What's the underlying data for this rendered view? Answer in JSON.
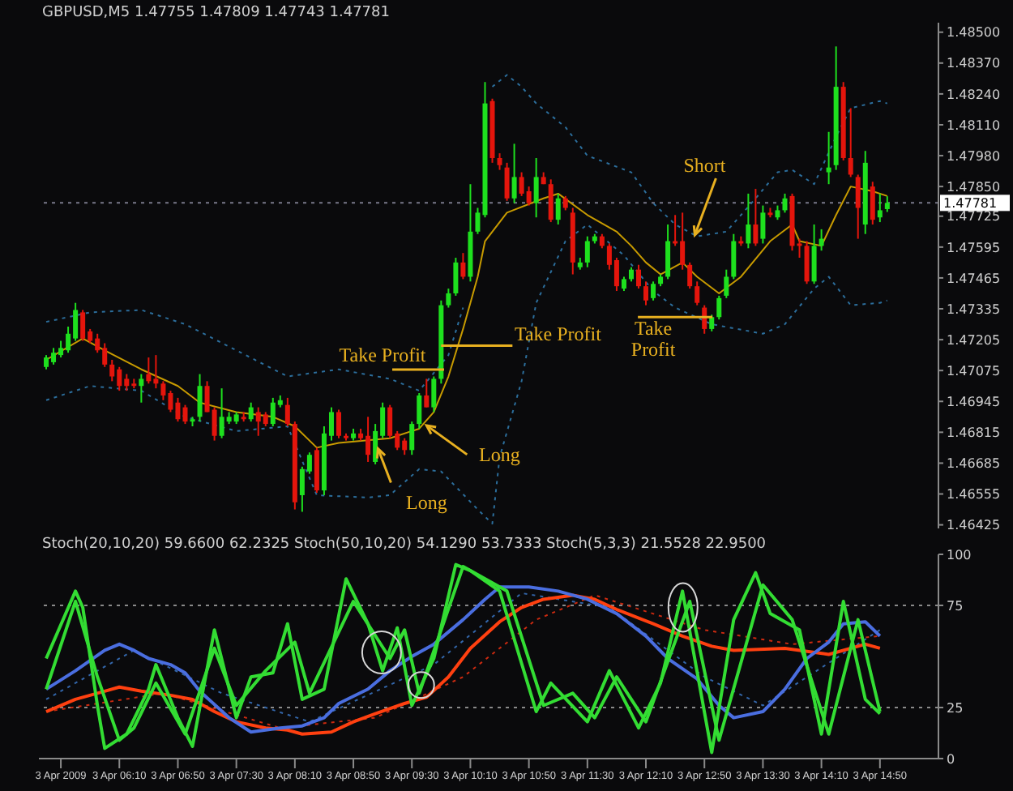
{
  "chart_data": [
    {
      "type": "candlestick",
      "title": "GBPUSD,M5 1.47755 1.47809 1.47743 1.47781",
      "x": [
        "2009-04-03T05:20",
        "2009-04-03T05:25",
        "2009-04-03T05:30",
        "2009-04-03T05:35",
        "2009-04-03T05:40",
        "2009-04-03T05:45",
        "2009-04-03T05:50",
        "2009-04-03T05:55",
        "2009-04-03T06:00",
        "2009-04-03T06:05",
        "2009-04-03T06:10",
        "2009-04-03T06:15",
        "2009-04-03T06:20",
        "2009-04-03T06:25",
        "2009-04-03T06:30",
        "2009-04-03T06:35",
        "2009-04-03T06:40",
        "2009-04-03T06:45",
        "2009-04-03T06:50",
        "2009-04-03T06:55",
        "2009-04-03T07:00",
        "2009-04-03T07:05",
        "2009-04-03T07:10",
        "2009-04-03T07:15",
        "2009-04-03T07:20",
        "2009-04-03T07:25",
        "2009-04-03T07:30",
        "2009-04-03T07:35",
        "2009-04-03T07:40",
        "2009-04-03T07:45",
        "2009-04-03T07:50",
        "2009-04-03T07:55",
        "2009-04-03T08:00",
        "2009-04-03T08:05",
        "2009-04-03T08:10",
        "2009-04-03T08:15",
        "2009-04-03T08:20",
        "2009-04-03T08:25",
        "2009-04-03T08:30",
        "2009-04-03T08:35",
        "2009-04-03T08:40",
        "2009-04-03T08:45",
        "2009-04-03T08:50",
        "2009-04-03T08:55",
        "2009-04-03T09:00",
        "2009-04-03T09:05",
        "2009-04-03T09:10",
        "2009-04-03T09:15",
        "2009-04-03T09:20",
        "2009-04-03T09:25",
        "2009-04-03T09:30",
        "2009-04-03T09:35",
        "2009-04-03T09:40",
        "2009-04-03T09:45",
        "2009-04-03T09:50",
        "2009-04-03T09:55",
        "2009-04-03T10:00",
        "2009-04-03T10:05",
        "2009-04-03T10:10",
        "2009-04-03T10:15",
        "2009-04-03T10:20",
        "2009-04-03T10:25",
        "2009-04-03T10:30",
        "2009-04-03T10:35",
        "2009-04-03T10:40",
        "2009-04-03T10:45",
        "2009-04-03T10:50",
        "2009-04-03T10:55",
        "2009-04-03T11:00",
        "2009-04-03T11:05",
        "2009-04-03T11:10",
        "2009-04-03T11:15",
        "2009-04-03T11:20",
        "2009-04-03T11:25",
        "2009-04-03T11:30",
        "2009-04-03T11:35",
        "2009-04-03T11:40",
        "2009-04-03T11:45",
        "2009-04-03T11:50",
        "2009-04-03T11:55",
        "2009-04-03T12:00",
        "2009-04-03T12:05",
        "2009-04-03T12:10",
        "2009-04-03T12:15",
        "2009-04-03T12:20",
        "2009-04-03T12:25",
        "2009-04-03T12:30",
        "2009-04-03T12:35",
        "2009-04-03T12:40",
        "2009-04-03T12:45",
        "2009-04-03T12:50",
        "2009-04-03T12:55",
        "2009-04-03T13:00",
        "2009-04-03T13:05",
        "2009-04-03T13:10",
        "2009-04-03T13:15",
        "2009-04-03T13:20",
        "2009-04-03T13:25",
        "2009-04-03T13:30",
        "2009-04-03T13:35",
        "2009-04-03T13:40",
        "2009-04-03T13:45",
        "2009-04-03T13:50",
        "2009-04-03T13:55",
        "2009-04-03T14:00",
        "2009-04-03T14:05",
        "2009-04-03T14:10",
        "2009-04-03T14:15",
        "2009-04-03T14:20",
        "2009-04-03T14:25",
        "2009-04-03T14:30",
        "2009-04-03T14:35",
        "2009-04-03T14:40",
        "2009-04-03T14:45",
        "2009-04-03T14:50",
        "2009-04-03T14:55"
      ],
      "series": [
        {
          "type": "candlestick",
          "ohlc": [
            [
              1.4709,
              1.4714,
              1.4708,
              1.4713
            ],
            [
              1.4711,
              1.4717,
              1.471,
              1.4715
            ],
            [
              1.4714,
              1.472,
              1.4713,
              1.4717
            ],
            [
              1.4716,
              1.4726,
              1.4715,
              1.4723
            ],
            [
              1.4721,
              1.4736,
              1.472,
              1.4733
            ],
            [
              1.4732,
              1.4733,
              1.472,
              1.4721
            ],
            [
              1.4724,
              1.4725,
              1.4719,
              1.472
            ],
            [
              1.4721,
              1.4723,
              1.4715,
              1.4716
            ],
            [
              1.4717,
              1.4719,
              1.4709,
              1.471
            ],
            [
              1.471,
              1.4712,
              1.4703,
              1.4705
            ],
            [
              1.4708,
              1.4709,
              1.4699,
              1.4701
            ],
            [
              1.4704,
              1.4706,
              1.4699,
              1.4701
            ],
            [
              1.4702,
              1.4704,
              1.47,
              1.4701
            ],
            [
              1.4701,
              1.4706,
              1.4694,
              1.4704
            ],
            [
              1.4706,
              1.4713,
              1.4702,
              1.4703
            ],
            [
              1.4704,
              1.4714,
              1.47,
              1.4702
            ],
            [
              1.4702,
              1.4703,
              1.4695,
              1.4697
            ],
            [
              1.4698,
              1.4699,
              1.469,
              1.4691
            ],
            [
              1.4694,
              1.4696,
              1.4686,
              1.4687
            ],
            [
              1.4692,
              1.4693,
              1.4685,
              1.4686
            ],
            [
              1.4686,
              1.4688,
              1.4684,
              1.4687
            ],
            [
              1.4688,
              1.4706,
              1.4686,
              1.4701
            ],
            [
              1.4701,
              1.4703,
              1.469,
              1.469
            ],
            [
              1.4691,
              1.4692,
              1.4678,
              1.468
            ],
            [
              1.468,
              1.47,
              1.4679,
              1.4688
            ],
            [
              1.4686,
              1.469,
              1.4685,
              1.4688
            ],
            [
              1.4686,
              1.469,
              1.4685,
              1.4689
            ],
            [
              1.4688,
              1.469,
              1.4686,
              1.4687
            ],
            [
              1.4687,
              1.4694,
              1.4686,
              1.4692
            ],
            [
              1.469,
              1.4692,
              1.468,
              1.4686
            ],
            [
              1.4689,
              1.469,
              1.4684,
              1.4685
            ],
            [
              1.4685,
              1.4696,
              1.4684,
              1.4694
            ],
            [
              1.4693,
              1.4697,
              1.4692,
              1.4695
            ],
            [
              1.4693,
              1.4696,
              1.4684,
              1.4685
            ],
            [
              1.4685,
              1.4686,
              1.4649,
              1.4652
            ],
            [
              1.4655,
              1.4667,
              1.4648,
              1.4666
            ],
            [
              1.4665,
              1.4673,
              1.4664,
              1.4672
            ],
            [
              1.4674,
              1.4675,
              1.4656,
              1.4657
            ],
            [
              1.4657,
              1.4684,
              1.4655,
              1.4681
            ],
            [
              1.468,
              1.4692,
              1.4678,
              1.469
            ],
            [
              1.469,
              1.4691,
              1.4679,
              1.468
            ],
            [
              1.468,
              1.4681,
              1.4678,
              1.4679
            ],
            [
              1.4679,
              1.4683,
              1.4678,
              1.4681
            ],
            [
              1.4681,
              1.4683,
              1.4678,
              1.4679
            ],
            [
              1.468,
              1.4688,
              1.4669,
              1.4672
            ],
            [
              1.4669,
              1.4685,
              1.4668,
              1.4682
            ],
            [
              1.468,
              1.4694,
              1.4679,
              1.4692
            ],
            [
              1.4692,
              1.4693,
              1.4679,
              1.468
            ],
            [
              1.4681,
              1.4682,
              1.4674,
              1.4675
            ],
            [
              1.4678,
              1.4679,
              1.4672,
              1.4674
            ],
            [
              1.4674,
              1.4686,
              1.4672,
              1.4685
            ],
            [
              1.4685,
              1.4698,
              1.4683,
              1.4697
            ],
            [
              1.4697,
              1.4704,
              1.4692,
              1.4692
            ],
            [
              1.4692,
              1.4705,
              1.469,
              1.4704
            ],
            [
              1.4704,
              1.4737,
              1.4702,
              1.4735
            ],
            [
              1.4735,
              1.4742,
              1.4734,
              1.474
            ],
            [
              1.474,
              1.4755,
              1.4739,
              1.4753
            ],
            [
              1.4753,
              1.4757,
              1.4746,
              1.4747
            ],
            [
              1.4747,
              1.4786,
              1.4745,
              1.4766
            ],
            [
              1.4766,
              1.4776,
              1.4765,
              1.4774
            ],
            [
              1.4773,
              1.4829,
              1.4772,
              1.482
            ],
            [
              1.4821,
              1.4822,
              1.4795,
              1.4797
            ],
            [
              1.4797,
              1.4799,
              1.4792,
              1.4794
            ],
            [
              1.4793,
              1.4795,
              1.4779,
              1.478
            ],
            [
              1.478,
              1.4803,
              1.4778,
              1.4789
            ],
            [
              1.4789,
              1.4791,
              1.4781,
              1.4782
            ],
            [
              1.4783,
              1.4785,
              1.4777,
              1.4778
            ],
            [
              1.4778,
              1.4797,
              1.4772,
              1.4789
            ],
            [
              1.4789,
              1.4791,
              1.4786,
              1.4786
            ],
            [
              1.4786,
              1.4788,
              1.477,
              1.4771
            ],
            [
              1.4771,
              1.4782,
              1.4769,
              1.478
            ],
            [
              1.478,
              1.4781,
              1.4775,
              1.4776
            ],
            [
              1.4774,
              1.4776,
              1.4748,
              1.4753
            ],
            [
              1.4751,
              1.4755,
              1.475,
              1.4753
            ],
            [
              1.4753,
              1.4764,
              1.4751,
              1.4762
            ],
            [
              1.4762,
              1.4765,
              1.4761,
              1.4764
            ],
            [
              1.4764,
              1.4765,
              1.4759,
              1.476
            ],
            [
              1.476,
              1.4761,
              1.475,
              1.4752
            ],
            [
              1.4754,
              1.4755,
              1.4741,
              1.4743
            ],
            [
              1.4742,
              1.4747,
              1.4741,
              1.4746
            ],
            [
              1.4746,
              1.4751,
              1.4745,
              1.475
            ],
            [
              1.475,
              1.4752,
              1.4742,
              1.4743
            ],
            [
              1.4743,
              1.4745,
              1.4735,
              1.4737
            ],
            [
              1.4738,
              1.4745,
              1.4737,
              1.4744
            ],
            [
              1.4744,
              1.4748,
              1.4743,
              1.4747
            ],
            [
              1.4747,
              1.4769,
              1.4746,
              1.4762
            ],
            [
              1.4762,
              1.4773,
              1.476,
              1.4761
            ],
            [
              1.4762,
              1.4774,
              1.475,
              1.4752
            ],
            [
              1.4752,
              1.4753,
              1.4742,
              1.4743
            ],
            [
              1.4743,
              1.4745,
              1.4735,
              1.4736
            ],
            [
              1.4734,
              1.4735,
              1.4723,
              1.4725
            ],
            [
              1.4725,
              1.4731,
              1.4724,
              1.473
            ],
            [
              1.473,
              1.4739,
              1.4729,
              1.4738
            ],
            [
              1.4739,
              1.475,
              1.4738,
              1.4747
            ],
            [
              1.4747,
              1.4765,
              1.4746,
              1.4762
            ],
            [
              1.4762,
              1.4764,
              1.476,
              1.4761
            ],
            [
              1.4761,
              1.4782,
              1.4759,
              1.4769
            ],
            [
              1.4769,
              1.4784,
              1.476,
              1.4761
            ],
            [
              1.4763,
              1.4777,
              1.4761,
              1.4774
            ],
            [
              1.4774,
              1.4776,
              1.4772,
              1.4773
            ],
            [
              1.4772,
              1.4777,
              1.4771,
              1.4775
            ],
            [
              1.4775,
              1.4782,
              1.4774,
              1.478
            ],
            [
              1.4781,
              1.4782,
              1.4758,
              1.476
            ],
            [
              1.4761,
              1.4763,
              1.4755,
              1.476
            ],
            [
              1.476,
              1.4762,
              1.4744,
              1.4745
            ],
            [
              1.4745,
              1.4769,
              1.4744,
              1.476
            ],
            [
              1.476,
              1.4767,
              1.4758,
              1.4763
            ],
            [
              1.4791,
              1.4808,
              1.4786,
              1.4793
            ],
            [
              1.4794,
              1.4844,
              1.4792,
              1.4827
            ],
            [
              1.4827,
              1.4829,
              1.4796,
              1.4797
            ],
            [
              1.4797,
              1.4818,
              1.4789,
              1.479
            ],
            [
              1.4789,
              1.479,
              1.4763,
              1.4776
            ],
            [
              1.4769,
              1.48,
              1.4765,
              1.4795
            ],
            [
              1.4785,
              1.4787,
              1.4769,
              1.4771
            ],
            [
              1.4772,
              1.4782,
              1.477,
              1.4775
            ],
            [
              1.47755,
              1.47809,
              1.47743,
              1.47781
            ]
          ],
          "colors": [
            "#1ee01e",
            "#1ee01e",
            "#1ee01e",
            "#1ee01e",
            "#1ee01e",
            "#e4150c",
            "#e4150c",
            "#e4150c",
            "#e4150c",
            "#e4150c",
            "#e4150c",
            "#e4150c",
            "#e4150c",
            "#1ee01e",
            "#e4150c",
            "#e4150c",
            "#e4150c",
            "#e4150c",
            "#e4150c",
            "#e4150c",
            "#1ee01e",
            "#1ee01e",
            "#e4150c",
            "#e4150c",
            "#1ee01e",
            "#1ee01e",
            "#1ee01e",
            "#e4150c",
            "#1ee01e",
            "#e4150c",
            "#e4150c",
            "#1ee01e",
            "#1ee01e",
            "#e4150c",
            "#e4150c",
            "#1ee01e",
            "#1ee01e",
            "#e4150c",
            "#1ee01e",
            "#1ee01e",
            "#e4150c",
            "#e4150c",
            "#1ee01e",
            "#e4150c",
            "#e4150c",
            "#1ee01e",
            "#1ee01e",
            "#e4150c",
            "#e4150c",
            "#e4150c",
            "#1ee01e",
            "#1ee01e",
            "#e4150c",
            "#1ee01e",
            "#1ee01e",
            "#1ee01e",
            "#1ee01e",
            "#e4150c",
            "#1ee01e",
            "#1ee01e",
            "#1ee01e",
            "#e4150c",
            "#e4150c",
            "#e4150c",
            "#1ee01e",
            "#e4150c",
            "#e4150c",
            "#1ee01e",
            "#e4150c",
            "#e4150c",
            "#1ee01e",
            "#e4150c",
            "#e4150c",
            "#1ee01e",
            "#1ee01e",
            "#1ee01e",
            "#e4150c",
            "#e4150c",
            "#e4150c",
            "#1ee01e",
            "#1ee01e",
            "#e4150c",
            "#e4150c",
            "#1ee01e",
            "#1ee01e",
            "#1ee01e",
            "#e4150c",
            "#e4150c",
            "#e4150c",
            "#e4150c",
            "#e4150c",
            "#1ee01e",
            "#1ee01e",
            "#1ee01e",
            "#1ee01e",
            "#e4150c",
            "#1ee01e",
            "#e4150c",
            "#1ee01e",
            "#e4150c",
            "#1ee01e",
            "#1ee01e",
            "#e4150c",
            "#e4150c",
            "#e4150c",
            "#1ee01e",
            "#1ee01e",
            "#1ee01e",
            "#1ee01e",
            "#e4150c",
            "#e4150c",
            "#e4150c",
            "#1ee01e",
            "#e4150c",
            "#1ee01e",
            "#1ee01e"
          ]
        },
        {
          "type": "line",
          "color": "#c89b00",
          "x": [
            "2009-04-03T05:20",
            "2009-04-03T05:45",
            "2009-04-03T06:00",
            "2009-04-03T06:25",
            "2009-04-03T06:50",
            "2009-04-03T07:05",
            "2009-04-03T07:30",
            "2009-04-03T07:55",
            "2009-04-03T08:10",
            "2009-04-03T08:25",
            "2009-04-03T08:40",
            "2009-04-03T09:15",
            "2009-04-03T09:35",
            "2009-04-03T09:45",
            "2009-04-03T09:55",
            "2009-04-03T10:05",
            "2009-04-03T10:15",
            "2009-04-03T10:20",
            "2009-04-03T10:35",
            "2009-04-03T11:00",
            "2009-04-03T11:10",
            "2009-04-03T11:30",
            "2009-04-03T11:50",
            "2009-04-03T12:00",
            "2009-04-03T12:10",
            "2009-04-03T12:20",
            "2009-04-03T12:35",
            "2009-04-03T12:45",
            "2009-04-03T13:00",
            "2009-04-03T13:15",
            "2009-04-03T13:35",
            "2009-04-03T13:50",
            "2009-04-03T13:55",
            "2009-04-03T14:10",
            "2009-04-03T14:20",
            "2009-04-03T14:30",
            "2009-04-03T14:45",
            "2009-04-03T14:55"
          ],
          "values": [
            1.4712,
            1.4721,
            1.4716,
            1.4708,
            1.4701,
            1.4694,
            1.469,
            1.4688,
            1.4684,
            1.4675,
            1.4677,
            1.4679,
            1.4683,
            1.469,
            1.4705,
            1.4725,
            1.4747,
            1.4762,
            1.4774,
            1.478,
            1.4782,
            1.4773,
            1.4766,
            1.476,
            1.4753,
            1.4748,
            1.4753,
            1.4747,
            1.474,
            1.4747,
            1.4762,
            1.4769,
            1.4762,
            1.476,
            1.4773,
            1.4785,
            1.4783,
            1.4781
          ]
        },
        {
          "type": "line",
          "color": "#2c6e9c",
          "line_style": "dotted",
          "x": [
            "2009-04-03T05:20",
            "2009-04-03T05:50",
            "2009-04-03T06:25",
            "2009-04-03T06:55",
            "2009-04-03T07:30",
            "2009-04-03T08:05",
            "2009-04-03T08:40",
            "2009-04-03T09:15",
            "2009-04-03T09:35",
            "2009-04-03T09:55",
            "2009-04-03T10:05",
            "2009-04-03T10:10",
            "2009-04-03T10:15",
            "2009-04-03T10:20",
            "2009-04-03T10:25",
            "2009-04-03T10:35",
            "2009-04-03T10:45",
            "2009-04-03T10:55",
            "2009-04-03T11:15",
            "2009-04-03T11:30",
            "2009-04-03T12:00",
            "2009-04-03T12:15",
            "2009-04-03T12:30",
            "2009-04-03T12:45",
            "2009-04-03T13:05",
            "2009-04-03T13:25",
            "2009-04-03T13:40",
            "2009-04-03T13:50",
            "2009-04-03T14:05",
            "2009-04-03T14:20",
            "2009-04-03T14:30",
            "2009-04-03T14:50",
            "2009-04-03T14:55"
          ],
          "values": [
            1.4728,
            1.4732,
            1.4733,
            1.4727,
            1.4716,
            1.4705,
            1.4708,
            1.4704,
            1.4699,
            1.4714,
            1.4734,
            null,
            null,
            null,
            1.4827,
            1.4832,
            1.4827,
            1.482,
            1.481,
            1.4798,
            1.4791,
            1.4778,
            1.4769,
            1.4764,
            1.4766,
            1.478,
            1.4791,
            1.4792,
            1.4786,
            1.4806,
            1.4818,
            1.4821,
            1.482
          ]
        },
        {
          "type": "line",
          "color": "#2c6e9c",
          "line_style": "dotted",
          "x": [
            "2009-04-03T05:20",
            "2009-04-03T05:50",
            "2009-04-03T06:25",
            "2009-04-03T06:55",
            "2009-04-03T07:30",
            "2009-04-03T08:05",
            "2009-04-03T08:25",
            "2009-04-03T09:00",
            "2009-04-03T09:15",
            "2009-04-03T09:35",
            "2009-04-03T09:50",
            "2009-04-03T10:15",
            "2009-04-03T10:25",
            "2009-04-03T10:30",
            "2009-04-03T10:45",
            "2009-04-03T10:55",
            "2009-04-03T11:15",
            "2009-04-03T11:30",
            "2009-04-03T11:55",
            "2009-04-03T12:15",
            "2009-04-03T12:30",
            "2009-04-03T12:55",
            "2009-04-03T13:30",
            "2009-04-03T13:45",
            "2009-04-03T14:05",
            "2009-04-03T14:15",
            "2009-04-03T14:30",
            "2009-04-03T14:50",
            "2009-04-03T14:55"
          ],
          "values": [
            1.4695,
            1.4701,
            1.4699,
            1.4688,
            1.4682,
            1.4684,
            1.4655,
            1.4654,
            1.4655,
            1.4666,
            1.4665,
            1.4649,
            1.4643,
            1.4671,
            1.4703,
            1.4736,
            1.4762,
            1.4769,
            1.4756,
            1.4741,
            1.4734,
            1.4727,
            1.4723,
            1.4727,
            1.4742,
            1.4747,
            1.4735,
            1.4736,
            1.4737
          ]
        }
      ],
      "xlim": [
        "2009-04-03T05:15",
        "2009-04-03T15:30"
      ],
      "ylim": [
        1.4641,
        1.4854
      ],
      "yticks": [
        {
          "value": 1.485,
          "label": "1.48500"
        },
        {
          "value": 1.4837,
          "label": "1.48370"
        },
        {
          "value": 1.4824,
          "label": "1.48240"
        },
        {
          "value": 1.4811,
          "label": "1.48110"
        },
        {
          "value": 1.4798,
          "label": "1.47980"
        },
        {
          "value": 1.4785,
          "label": "1.47850"
        },
        {
          "value": 1.47725,
          "label": "1.47725"
        },
        {
          "value": 1.47595,
          "label": "1.47595"
        },
        {
          "value": 1.47465,
          "label": "1.47465"
        },
        {
          "value": 1.47335,
          "label": "1.47335"
        },
        {
          "value": 1.47205,
          "label": "1.47205"
        },
        {
          "value": 1.47075,
          "label": "1.47075"
        },
        {
          "value": 1.46945,
          "label": "1.46945"
        },
        {
          "value": 1.46815,
          "label": "1.46815"
        },
        {
          "value": 1.46685,
          "label": "1.46685"
        },
        {
          "value": 1.46555,
          "label": "1.46555"
        },
        {
          "value": 1.46425,
          "label": "1.46425"
        }
      ],
      "tick_labels": "y",
      "ref_lines": [
        {
          "axis": "y",
          "value": 1.47781,
          "label": "1.47781",
          "color": "#7a7a8a",
          "line_style": "dotted"
        }
      ],
      "annotations": [
        "Take Profit",
        {
          "text": "Take Profit",
          "x": "2009-04-03T09:50",
          "y": 1.4718
        },
        {
          "text": "Take Profit",
          "x": "2009-04-03T12:30",
          "y": 1.473
        },
        "Long",
        "Long",
        "Short"
      ]
    },
    {
      "type": "line",
      "title": "Stoch(20,10,20) 59.6600 62.2325 Stoch(50,10,20) 54.1290 53.7333 Stoch(5,3,3) 21.5528 22.9500",
      "series": [
        {
          "color": "#cc2a10",
          "line_style": "dotted",
          "x": [
            "2009-04-03T05:20",
            "2009-04-03T06:40",
            "2009-04-03T08:00",
            "2009-04-03T09:05",
            "2009-04-03T10:05",
            "2009-04-03T10:55",
            "2009-04-03T11:35",
            "2009-04-03T12:50",
            "2009-04-03T13:50",
            "2009-04-03T14:50"
          ],
          "values": [
            23,
            32,
            15,
            20,
            40,
            68,
            80,
            63,
            56,
            60
          ]
        },
        {
          "color": "#3366aa",
          "line_style": "dotted",
          "x": [
            "2009-04-03T05:20",
            "2009-04-03T06:20",
            "2009-04-03T07:20",
            "2009-04-03T08:20",
            "2009-04-03T09:45",
            "2009-04-03T10:45",
            "2009-04-03T11:45",
            "2009-04-03T12:50",
            "2009-04-03T13:30",
            "2009-04-03T14:50"
          ],
          "values": [
            29,
            53,
            32,
            18,
            46,
            81,
            74,
            40,
            26,
            63
          ]
        },
        {
          "color": "#ff4010",
          "x": [
            "2009-04-03T05:20",
            "2009-04-03T05:40",
            "2009-04-03T06:00",
            "2009-04-03T06:10",
            "2009-04-03T06:25",
            "2009-04-03T06:45",
            "2009-04-03T07:00",
            "2009-04-03T07:15",
            "2009-04-03T07:30",
            "2009-04-03T07:50",
            "2009-04-03T08:05",
            "2009-04-03T08:15",
            "2009-04-03T08:35",
            "2009-04-03T08:50",
            "2009-04-03T09:05",
            "2009-04-03T09:25",
            "2009-04-03T09:40",
            "2009-04-03T09:55",
            "2009-04-03T10:10",
            "2009-04-03T10:30",
            "2009-04-03T10:45",
            "2009-04-03T11:00",
            "2009-04-03T11:20",
            "2009-04-03T11:35",
            "2009-04-03T11:50",
            "2009-04-03T12:15",
            "2009-04-03T12:35",
            "2009-04-03T12:55",
            "2009-04-03T13:10",
            "2009-04-03T13:45",
            "2009-04-03T14:15",
            "2009-04-03T14:40",
            "2009-04-03T14:50"
          ],
          "values": [
            23,
            29,
            33,
            35,
            33,
            31,
            29,
            23,
            18,
            15,
            14,
            12,
            13,
            18,
            22,
            27,
            30,
            40,
            54,
            67,
            74,
            78,
            80,
            78,
            73,
            66,
            60,
            55,
            53,
            54,
            51,
            56,
            54
          ]
        },
        {
          "color": "#4a6ee0",
          "x": [
            "2009-04-03T05:20",
            "2009-04-03T05:40",
            "2009-04-03T06:00",
            "2009-04-03T06:10",
            "2009-04-03T06:20",
            "2009-04-03T06:30",
            "2009-04-03T06:45",
            "2009-04-03T06:55",
            "2009-04-03T07:05",
            "2009-04-03T07:25",
            "2009-04-03T07:40",
            "2009-04-03T08:00",
            "2009-04-03T08:15",
            "2009-04-03T08:30",
            "2009-04-03T08:40",
            "2009-04-03T09:00",
            "2009-04-03T09:15",
            "2009-04-03T09:30",
            "2009-04-03T09:45",
            "2009-04-03T10:05",
            "2009-04-03T10:20",
            "2009-04-03T10:30",
            "2009-04-03T10:50",
            "2009-04-03T11:10",
            "2009-04-03T11:30",
            "2009-04-03T11:50",
            "2009-04-03T12:10",
            "2009-04-03T12:25",
            "2009-04-03T12:45",
            "2009-04-03T13:00",
            "2009-04-03T13:10",
            "2009-04-03T13:30",
            "2009-04-03T13:45",
            "2009-04-03T14:00",
            "2009-04-03T14:15",
            "2009-04-03T14:25",
            "2009-04-03T14:40",
            "2009-04-03T14:50"
          ],
          "values": [
            34,
            43,
            53,
            56,
            53,
            49,
            46,
            42,
            33,
            20,
            13,
            15,
            16,
            20,
            27,
            34,
            43,
            50,
            56,
            68,
            78,
            84,
            84,
            82,
            78,
            71,
            60,
            49,
            39,
            26,
            20,
            23,
            34,
            49,
            57,
            66,
            67,
            60
          ]
        },
        {
          "color": "#33dd33",
          "x": [
            "2009-04-03T05:20",
            "2009-04-03T05:40",
            "2009-04-03T05:45",
            "2009-04-03T05:55",
            "2009-04-03T06:00",
            "2009-04-03T06:15",
            "2009-04-03T06:30",
            "2009-04-03T06:35",
            "2009-04-03T06:50",
            "2009-04-03T07:00",
            "2009-04-03T07:15",
            "2009-04-03T07:30",
            "2009-04-03T07:40",
            "2009-04-03T07:55",
            "2009-04-03T08:05",
            "2009-04-03T08:15",
            "2009-04-03T08:30",
            "2009-04-03T08:45",
            "2009-04-03T09:00",
            "2009-04-03T09:10",
            "2009-04-03T09:20",
            "2009-04-03T09:30",
            "2009-04-03T09:45",
            "2009-04-03T10:00",
            "2009-04-03T10:10",
            "2009-04-03T10:30",
            "2009-04-03T10:55",
            "2009-04-03T11:05",
            "2009-04-03T11:30",
            "2009-04-03T11:45",
            "2009-04-03T12:05",
            "2009-04-03T12:20",
            "2009-04-03T12:35",
            "2009-04-03T12:55",
            "2009-04-03T13:10",
            "2009-04-03T13:25",
            "2009-04-03T13:35",
            "2009-04-03T13:55",
            "2009-04-03T14:10",
            "2009-04-03T14:25",
            "2009-04-03T14:40",
            "2009-04-03T14:50"
          ],
          "values": [
            49,
            82,
            74,
            26,
            5,
            12,
            34,
            46,
            20,
            6,
            63,
            20,
            40,
            42,
            66,
            29,
            34,
            88,
            66,
            43,
            64,
            26,
            49,
            95,
            92,
            82,
            23,
            37,
            18,
            43,
            15,
            37,
            82,
            3,
            68,
            91,
            71,
            63,
            12,
            77,
            29,
            22
          ]
        },
        {
          "color": "#33dd33",
          "x": [
            "2009-04-03T05:20",
            "2009-04-03T05:40",
            "2009-04-03T05:55",
            "2009-04-03T06:10",
            "2009-04-03T06:20",
            "2009-04-03T06:35",
            "2009-04-03T06:55",
            "2009-04-03T07:15",
            "2009-04-03T07:30",
            "2009-04-03T07:50",
            "2009-04-03T08:10",
            "2009-04-03T08:20",
            "2009-04-03T08:50",
            "2009-04-03T09:15",
            "2009-04-03T09:25",
            "2009-04-03T09:35",
            "2009-04-03T10:05",
            "2009-04-03T10:35",
            "2009-04-03T11:00",
            "2009-04-03T11:20",
            "2009-04-03T11:35",
            "2009-04-03T11:50",
            "2009-04-03T12:10",
            "2009-04-03T12:40",
            "2009-04-03T13:00",
            "2009-04-03T13:30",
            "2009-04-03T13:50",
            "2009-04-03T14:15",
            "2009-04-03T14:35",
            "2009-04-03T14:50"
          ],
          "values": [
            34,
            77,
            40,
            9,
            15,
            37,
            12,
            54,
            26,
            43,
            57,
            32,
            77,
            49,
            63,
            32,
            94,
            82,
            26,
            32,
            20,
            40,
            18,
            77,
            9,
            85,
            68,
            12,
            68,
            23
          ]
        }
      ],
      "xlim": [
        "2009-04-03T05:15",
        "2009-04-03T15:30"
      ],
      "xticks": [
        {
          "value": "2009-04-03T05:30",
          "label": "3 Apr 2009"
        },
        {
          "value": "2009-04-03T06:10",
          "label": "3 Apr 06:10"
        },
        {
          "value": "2009-04-03T06:50",
          "label": "3 Apr 06:50"
        },
        {
          "value": "2009-04-03T07:30",
          "label": "3 Apr 07:30"
        },
        {
          "value": "2009-04-03T08:10",
          "label": "3 Apr 08:10"
        },
        {
          "value": "2009-04-03T08:50",
          "label": "3 Apr 08:50"
        },
        {
          "value": "2009-04-03T09:30",
          "label": "3 Apr 09:30"
        },
        {
          "value": "2009-04-03T10:10",
          "label": "3 Apr 10:10"
        },
        {
          "value": "2009-04-03T10:50",
          "label": "3 Apr 10:50"
        },
        {
          "value": "2009-04-03T11:30",
          "label": "3 Apr 11:30"
        },
        {
          "value": "2009-04-03T12:10",
          "label": "3 Apr 12:10"
        },
        {
          "value": "2009-04-03T12:50",
          "label": "3 Apr 12:50"
        },
        {
          "value": "2009-04-03T13:30",
          "label": "3 Apr 13:30"
        },
        {
          "value": "2009-04-03T14:10",
          "label": "3 Apr 14:10"
        },
        {
          "value": "2009-04-03T14:50",
          "label": "3 Apr 14:50"
        }
      ],
      "ylim": [
        0,
        100
      ],
      "yticks": [
        0,
        25,
        75,
        100
      ],
      "ref_lines": [
        {
          "axis": "y",
          "value": 25,
          "color": "#8a8a8a",
          "line_style": "dotted"
        },
        {
          "axis": "y",
          "value": 75,
          "color": "#8a8a8a",
          "line_style": "dotted"
        }
      ]
    }
  ]
}
